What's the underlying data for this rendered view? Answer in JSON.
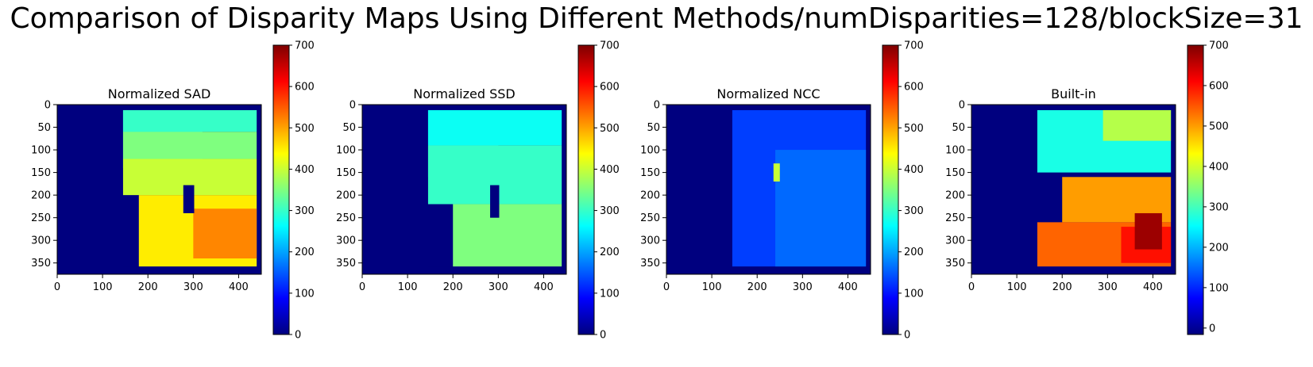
{
  "suptitle": "Comparison of Disparity Maps Using Different Methods/numDisparities=128/blockSize=31",
  "colormap": {
    "name": "jet",
    "stops": [
      "#00007f",
      "#0000ff",
      "#007fff",
      "#00ffff",
      "#7fff7f",
      "#ffff00",
      "#ff7f00",
      "#ff0000",
      "#7f0000"
    ]
  },
  "chart_data": [
    {
      "type": "heatmap",
      "title": "Normalized SAD",
      "xticks": [
        0,
        100,
        200,
        300,
        400
      ],
      "yticks": [
        0,
        50,
        100,
        150,
        200,
        250,
        300,
        350
      ],
      "xlim": [
        0,
        450
      ],
      "ylim": [
        375,
        0
      ],
      "colorbar": {
        "range": [
          0,
          700
        ],
        "ticks": [
          0,
          100,
          200,
          300,
          400,
          500,
          600,
          700
        ]
      },
      "background_value": 0,
      "valid_region": {
        "x": [
          145,
          440
        ],
        "y": [
          12,
          358
        ]
      },
      "regions": [
        {
          "value": 250,
          "x": [
            145,
            320
          ],
          "y": [
            12,
            140
          ]
        },
        {
          "value": 300,
          "x": [
            145,
            440
          ],
          "y": [
            12,
            60
          ]
        },
        {
          "value": 350,
          "x": [
            145,
            440
          ],
          "y": [
            60,
            120
          ]
        },
        {
          "value": 400,
          "x": [
            145,
            440
          ],
          "y": [
            120,
            200
          ]
        },
        {
          "value": 450,
          "x": [
            180,
            440
          ],
          "y": [
            200,
            358
          ]
        },
        {
          "value": 520,
          "x": [
            300,
            440
          ],
          "y": [
            230,
            340
          ]
        },
        {
          "value": 0,
          "x": [
            278,
            302
          ],
          "y": [
            178,
            240
          ]
        }
      ]
    },
    {
      "type": "heatmap",
      "title": "Normalized SSD",
      "xticks": [
        0,
        100,
        200,
        300,
        400
      ],
      "yticks": [
        0,
        50,
        100,
        150,
        200,
        250,
        300,
        350
      ],
      "xlim": [
        0,
        450
      ],
      "ylim": [
        375,
        0
      ],
      "colorbar": {
        "range": [
          0,
          700
        ],
        "ticks": [
          0,
          100,
          200,
          300,
          400,
          500,
          600,
          700
        ]
      },
      "background_value": 0,
      "valid_region": {
        "x": [
          145,
          440
        ],
        "y": [
          12,
          358
        ]
      },
      "regions": [
        {
          "value": 200,
          "x": [
            145,
            300
          ],
          "y": [
            12,
            160
          ]
        },
        {
          "value": 270,
          "x": [
            145,
            440
          ],
          "y": [
            12,
            90
          ]
        },
        {
          "value": 300,
          "x": [
            145,
            440
          ],
          "y": [
            90,
            220
          ]
        },
        {
          "value": 350,
          "x": [
            200,
            440
          ],
          "y": [
            220,
            358
          ]
        },
        {
          "value": 0,
          "x": [
            282,
            302
          ],
          "y": [
            178,
            250
          ]
        }
      ]
    },
    {
      "type": "heatmap",
      "title": "Normalized NCC",
      "xticks": [
        0,
        100,
        200,
        300,
        400
      ],
      "yticks": [
        0,
        50,
        100,
        150,
        200,
        250,
        300,
        350
      ],
      "xlim": [
        0,
        450
      ],
      "ylim": [
        375,
        0
      ],
      "colorbar": {
        "range": [
          0,
          700
        ],
        "ticks": [
          0,
          100,
          200,
          300,
          400,
          500,
          600,
          700
        ]
      },
      "background_value": 0,
      "valid_region": {
        "x": [
          145,
          440
        ],
        "y": [
          12,
          358
        ]
      },
      "regions": [
        {
          "value": 130,
          "x": [
            145,
            440
          ],
          "y": [
            12,
            358
          ]
        },
        {
          "value": 160,
          "x": [
            240,
            440
          ],
          "y": [
            100,
            358
          ]
        },
        {
          "value": 400,
          "x": [
            236,
            250
          ],
          "y": [
            130,
            170
          ]
        }
      ]
    },
    {
      "type": "heatmap",
      "title": "Built-in",
      "xticks": [
        0,
        100,
        200,
        300,
        400
      ],
      "yticks": [
        0,
        50,
        100,
        150,
        200,
        250,
        300,
        350
      ],
      "xlim": [
        0,
        450
      ],
      "ylim": [
        375,
        0
      ],
      "colorbar": {
        "range": [
          -16,
          700
        ],
        "ticks": [
          0,
          100,
          200,
          300,
          400,
          500,
          600,
          700
        ]
      },
      "background_value": -16,
      "valid_region": {
        "x": [
          145,
          440
        ],
        "y": [
          12,
          358
        ]
      },
      "regions": [
        {
          "value": 270,
          "x": [
            145,
            440
          ],
          "y": [
            12,
            150
          ]
        },
        {
          "value": 380,
          "x": [
            290,
            440
          ],
          "y": [
            12,
            80
          ]
        },
        {
          "value": 500,
          "x": [
            200,
            440
          ],
          "y": [
            160,
            260
          ]
        },
        {
          "value": 540,
          "x": [
            145,
            440
          ],
          "y": [
            260,
            358
          ]
        },
        {
          "value": 600,
          "x": [
            330,
            440
          ],
          "y": [
            270,
            350
          ]
        },
        {
          "value": 680,
          "x": [
            360,
            420
          ],
          "y": [
            240,
            320
          ]
        }
      ]
    }
  ]
}
